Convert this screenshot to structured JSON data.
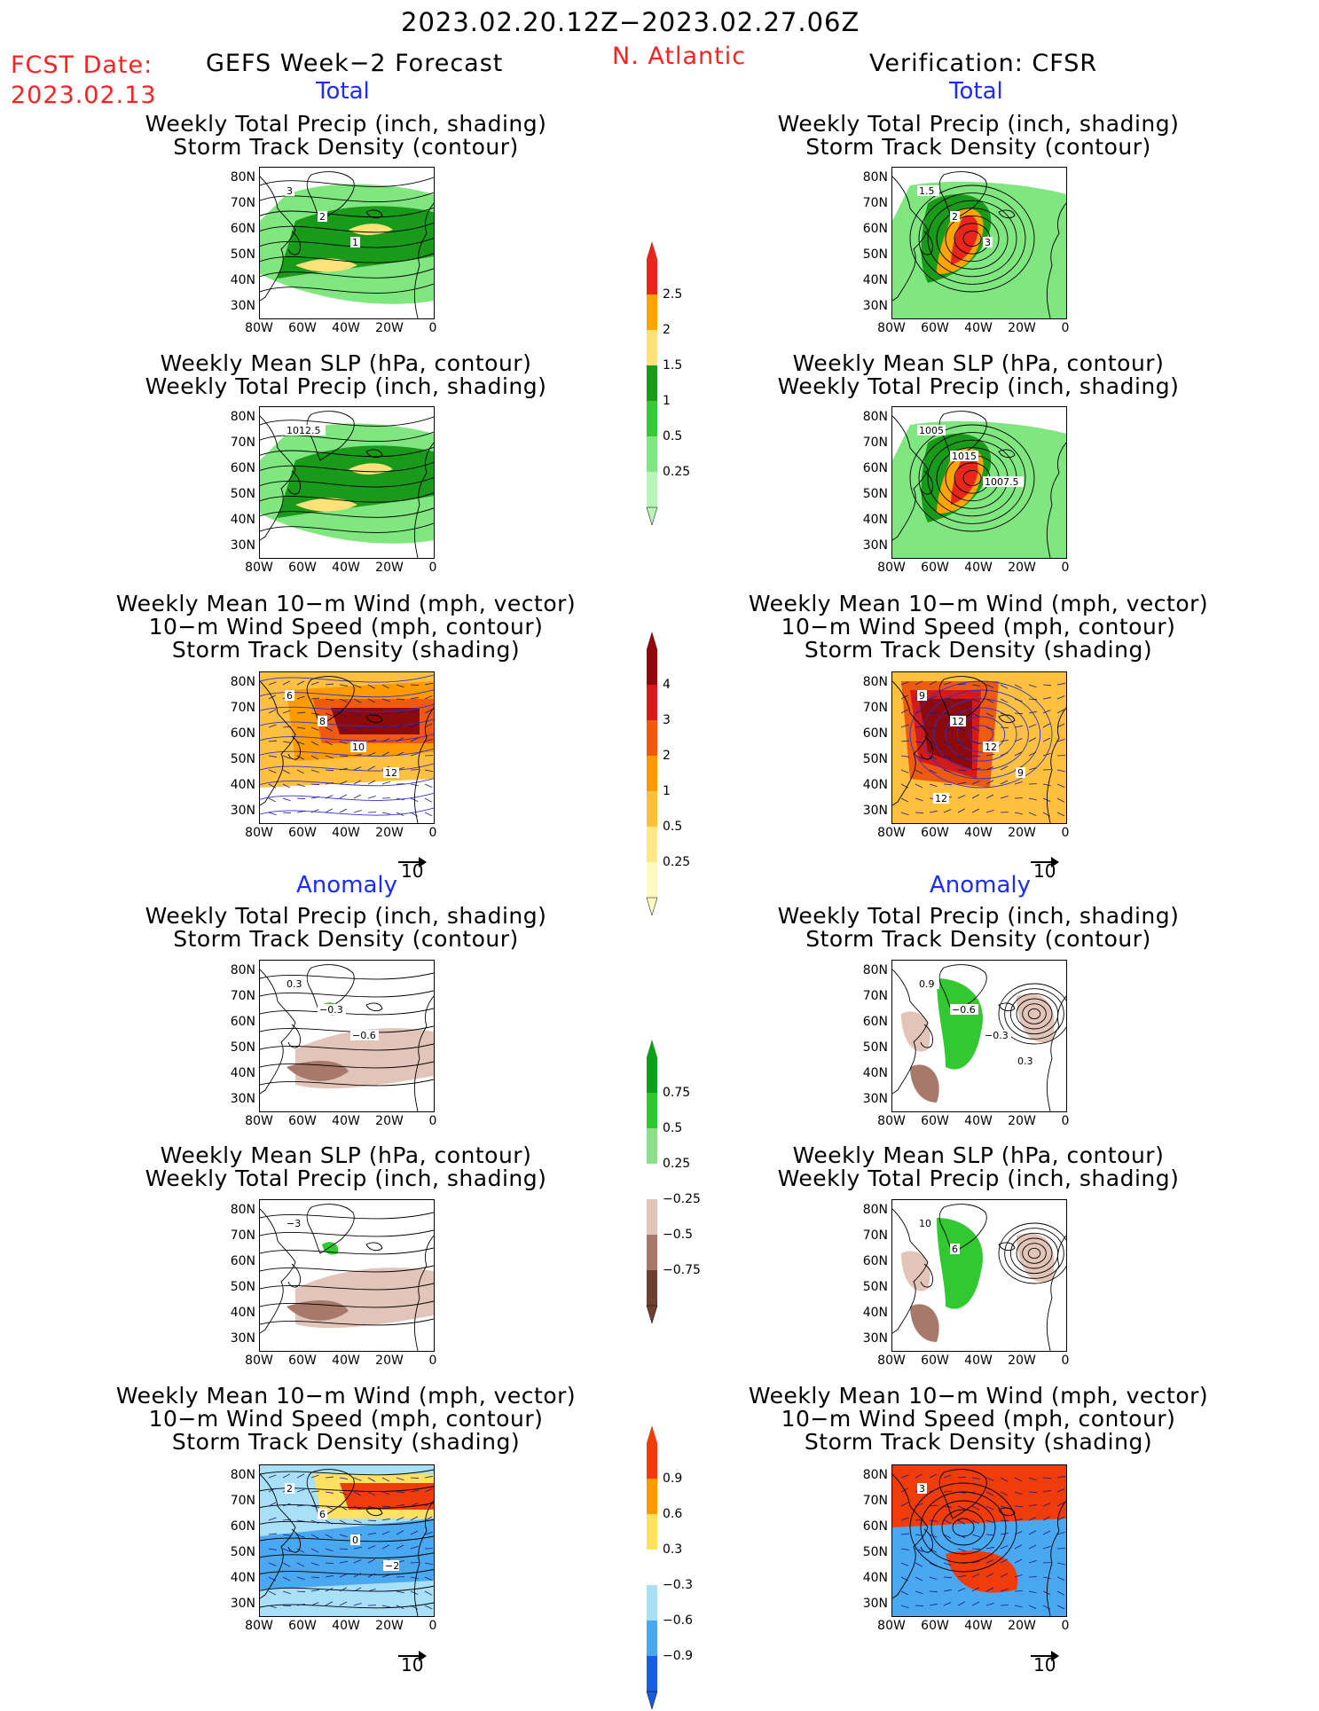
{
  "header": {
    "date_range": "2023.02.20.12Z−2023.02.27.06Z",
    "fcst_label": "FCST Date:",
    "fcst_date": "2023.02.13",
    "left_title": "GEFS Week−2 Forecast",
    "region": "N. Atlantic",
    "right_title": "Verification: CFSR"
  },
  "sections": {
    "total": "Total",
    "anomaly": "Anomaly"
  },
  "panel_titles": {
    "precip_track": [
      "Weekly Total Precip (inch, shading)",
      "Storm Track Density (contour)"
    ],
    "slp_precip": [
      "Weekly Mean SLP (hPa, contour)",
      "Weekly Total Precip (inch, shading)"
    ],
    "wind_track": [
      "Weekly Mean 10−m Wind (mph, vector)",
      "10−m Wind Speed (mph, contour)",
      "Storm Track Density (shading)"
    ]
  },
  "axes": {
    "lat": [
      "80N",
      "70N",
      "60N",
      "50N",
      "40N",
      "30N"
    ],
    "lon": [
      "80W",
      "60W",
      "40W",
      "20W",
      "0"
    ]
  },
  "vector_ref": "10",
  "colorbars": {
    "precip_total": {
      "labels": [
        "2.5",
        "2",
        "1.5",
        "1",
        "0.5",
        "0.25"
      ],
      "colors": [
        "#e8261c",
        "#ffa500",
        "#ffe17a",
        "#1a9a1a",
        "#3ac83a",
        "#80e680",
        "#b8f5b8"
      ]
    },
    "track_total": {
      "labels": [
        "4",
        "3",
        "2",
        "1",
        "0.5",
        "0.25"
      ],
      "colors": [
        "#8c0a0a",
        "#d41a1a",
        "#f05a10",
        "#ff9a00",
        "#ffc040",
        "#ffe88a",
        "#fffac0"
      ]
    },
    "precip_anom": {
      "labels": [
        "0.75",
        "0.5",
        "0.25",
        "−0.25",
        "−0.5",
        "−0.75"
      ],
      "colors": [
        "#0e9e1e",
        "#32c832",
        "#8ce08c",
        "#ffffff",
        "#e2c4b8",
        "#a8786a",
        "#6e4030"
      ]
    },
    "track_anom": {
      "labels": [
        "0.9",
        "0.6",
        "0.3",
        "−0.3",
        "−0.6",
        "−0.9"
      ],
      "colors": [
        "#f03c0a",
        "#ff9a00",
        "#ffe060",
        "#ffffff",
        "#a8e0f8",
        "#4aa8f0",
        "#1a5ce0"
      ]
    }
  },
  "contour_labels": {
    "l_precip_total": [
      "3",
      "2",
      "1"
    ],
    "r_precip_total": [
      "1.5",
      "2",
      "3"
    ],
    "l_slp_total": [
      "1012.5"
    ],
    "r_slp_total": [
      "1005",
      "1015",
      "1007.5"
    ],
    "l_wind_total": [
      "6",
      "8",
      "10",
      "12"
    ],
    "r_wind_total": [
      "9",
      "12",
      "12",
      "9",
      "12"
    ],
    "l_precip_anom": [
      "0.3",
      "−0.3",
      "−0.6"
    ],
    "r_precip_anom": [
      "0.9",
      "−0.6",
      "−0.3",
      "0.3"
    ],
    "l_slp_anom": [
      "−3"
    ],
    "r_slp_anom": [
      "10",
      "6"
    ],
    "l_wind_anom": [
      "2",
      "6",
      "0",
      "−2"
    ],
    "r_wind_anom": [
      "3"
    ]
  }
}
